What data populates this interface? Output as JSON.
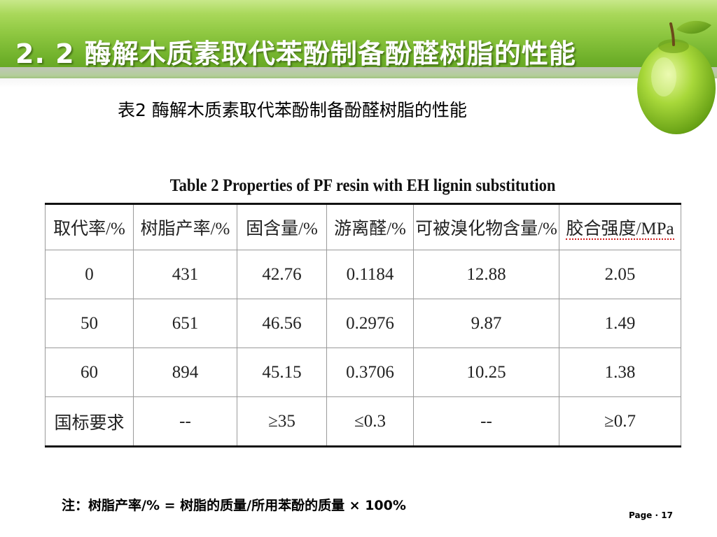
{
  "slide": {
    "title": "2. 2  酶解木质素取代苯酚制备酚醛树脂的性能",
    "table_caption_cn": "表2  酶解木质素取代苯酚制备酚醛树脂的性能",
    "table_caption_en": "Table 2    Properties of PF resin with EH lignin substitution",
    "note": "注：树脂产率/% = 树脂的质量/所用苯酚的质量 × 100%",
    "page_label": "Page · 17"
  },
  "table": {
    "headers": [
      "取代率/%",
      "树脂产率/%",
      "固含量/%",
      "游离醛/%",
      "可被溴化物含量/%",
      "胶合强度/MPa"
    ],
    "rows": [
      [
        "0",
        "431",
        "42.76",
        "0.1184",
        "12.88",
        "2.05"
      ],
      [
        "50",
        "651",
        "46.56",
        "0.2976",
        "9.87",
        "1.49"
      ],
      [
        "60",
        "894",
        "45.15",
        "0.3706",
        "10.25",
        "1.38"
      ],
      [
        "国标要求",
        "--",
        "≥35",
        "≤0.3",
        "--",
        "≥0.7"
      ]
    ]
  },
  "colors": {
    "header_green": "#8cc63f",
    "title_text": "#ffffff",
    "apple_green": "#9acd32"
  },
  "icons": {
    "apple": "green-apple-icon"
  }
}
